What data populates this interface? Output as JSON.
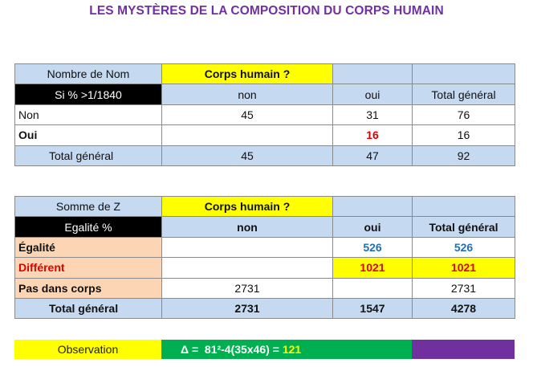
{
  "title": "LES MYSTÈRES DE LA COMPOSITION DU CORPS HUMAIN",
  "table1": {
    "corner": "Nombre de Nom",
    "filter_label": "Si % >1/1840",
    "col_field": "Corps humain ?",
    "cols": [
      "non",
      "oui",
      "Total général"
    ],
    "rows": [
      {
        "label": "Non",
        "non": "45",
        "oui": "31",
        "total": "76"
      },
      {
        "label": "Oui",
        "non": "",
        "oui": "16",
        "total": "16"
      }
    ],
    "total": {
      "label": "Total général",
      "non": "45",
      "oui": "47",
      "total": "92"
    }
  },
  "table2": {
    "corner": "Somme de Z",
    "filter_label": "Egalité %",
    "col_field": "Corps humain ?",
    "cols": [
      "non",
      "oui",
      "Total général"
    ],
    "rows": [
      {
        "label": "Égalité",
        "non": "",
        "oui": "526",
        "total": "526"
      },
      {
        "label": "Différent",
        "non": "",
        "oui": "1021",
        "total": "1021"
      },
      {
        "label": "Pas dans corps",
        "non": "2731",
        "oui": "",
        "total": "2731"
      }
    ],
    "total": {
      "label": "Total général",
      "non": "2731",
      "oui": "1547",
      "total": "4278"
    }
  },
  "observation": {
    "label": "Observation",
    "formula": "Δ =  81²-4(35x46) = ",
    "result": "121"
  }
}
